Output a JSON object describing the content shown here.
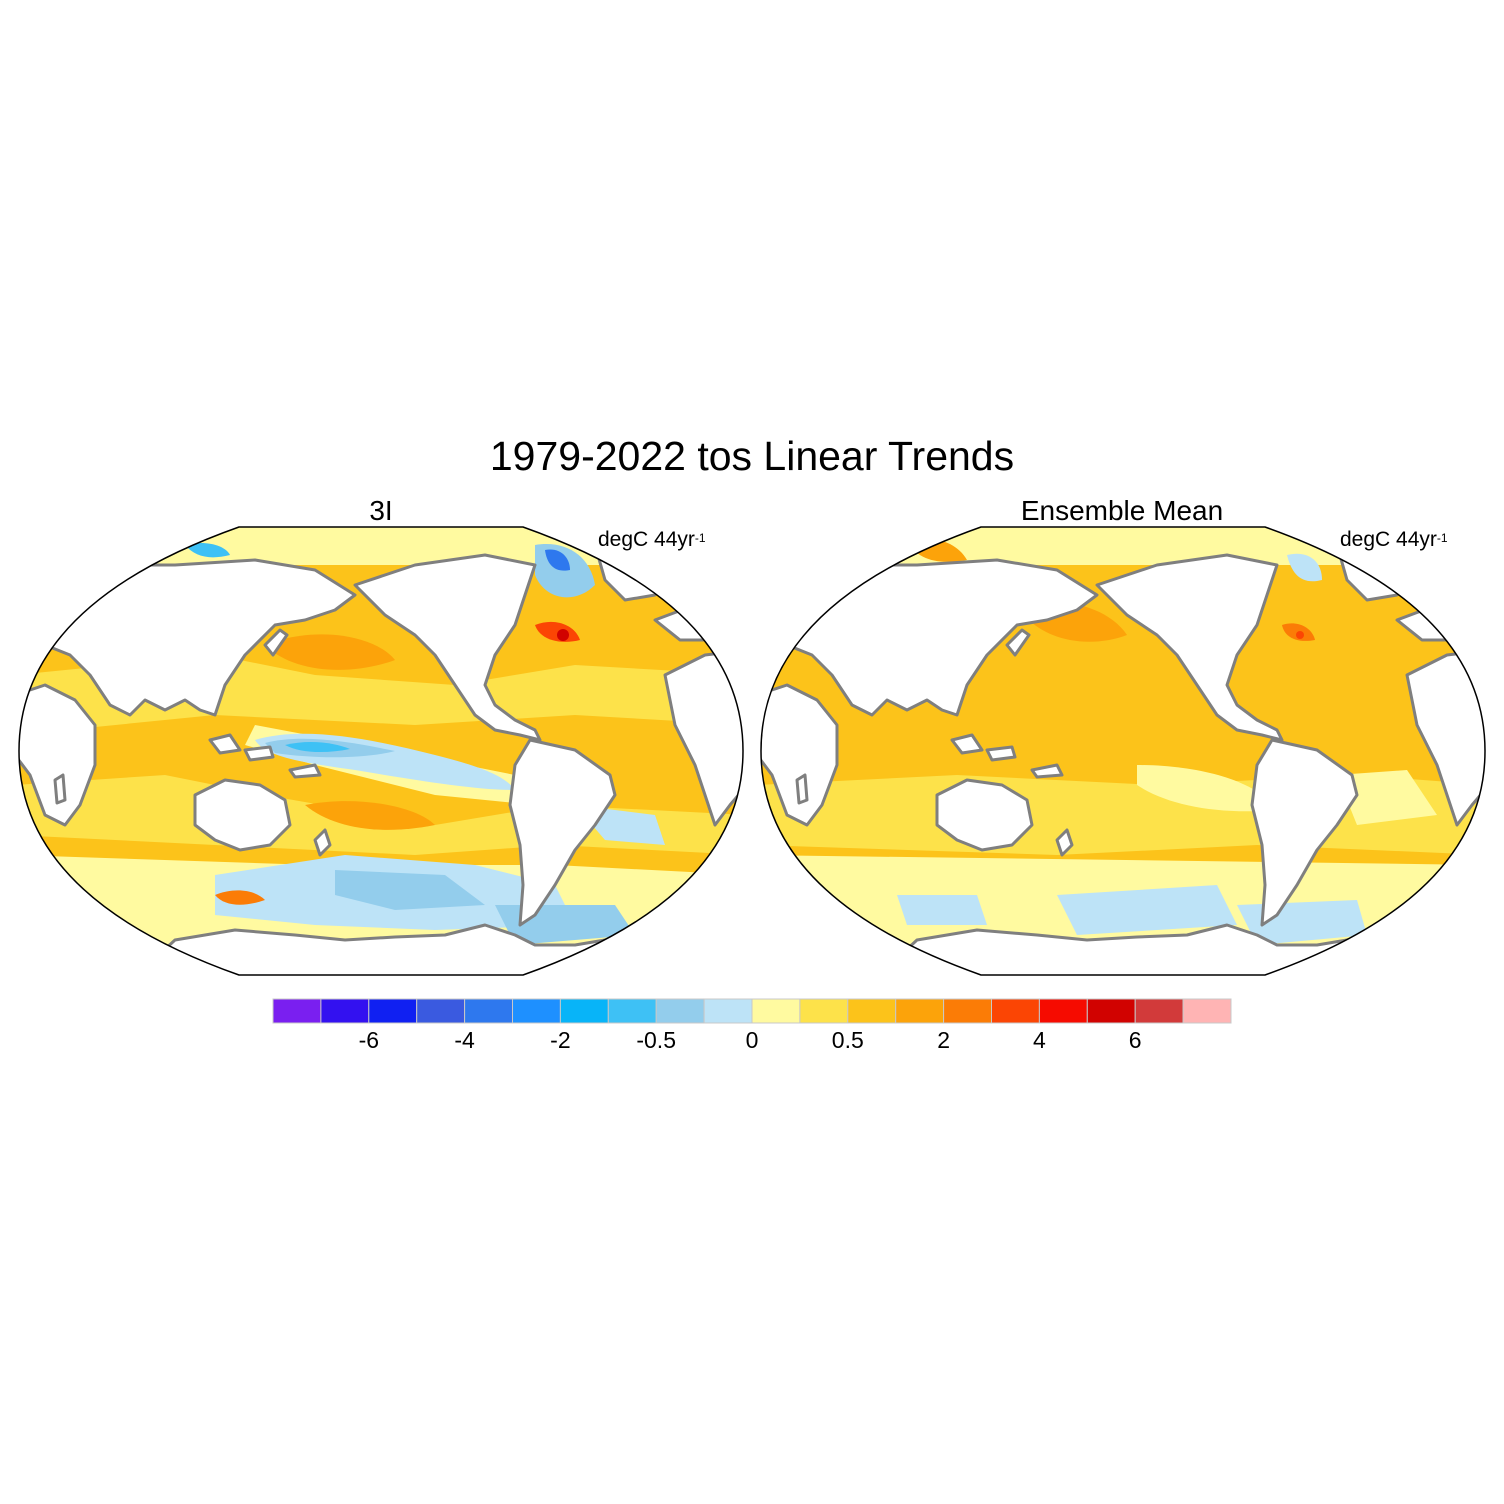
{
  "title": "1979-2022 tos Linear Trends",
  "panels": [
    {
      "title": "3I",
      "units_text": "degC 44yr",
      "units_exponent": "-1"
    },
    {
      "title": "Ensemble Mean",
      "units_text": "degC 44yr",
      "units_exponent": "-1"
    }
  ],
  "colorbar": {
    "colors": [
      "#7a1ff0",
      "#3311f0",
      "#1020f2",
      "#3a5ae0",
      "#2e78ee",
      "#1e90ff",
      "#08b4f8",
      "#3ec1f5",
      "#93cdec",
      "#bde3f7",
      "#fffaa0",
      "#fde24a",
      "#fcc31a",
      "#fca30a",
      "#fb7c06",
      "#fb4504",
      "#f60b00",
      "#d10200",
      "#d23a3a",
      "#ffb4b4"
    ],
    "tick_labels": [
      "-6",
      "-4",
      "-2",
      "-0.5",
      "0",
      "0.5",
      "2",
      "4",
      "6"
    ],
    "tick_boundary_index": [
      2,
      4,
      6,
      8,
      10,
      12,
      14,
      16,
      18
    ]
  },
  "colors": {
    "land": "#ffffff",
    "coastline": "#7f7f7f",
    "map_outline": "#000000"
  }
}
